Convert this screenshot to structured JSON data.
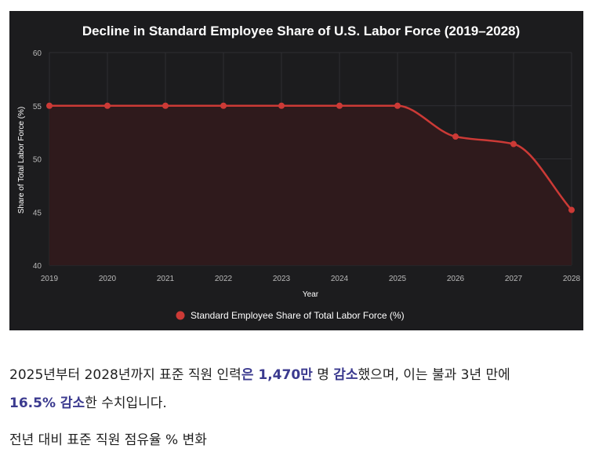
{
  "chart_data": {
    "type": "line",
    "title": "Decline in Standard Employee Share of U.S. Labor Force (2019–2028)",
    "xlabel": "Year",
    "ylabel": "Share of Total Labor Force (%)",
    "categories": [
      "2019",
      "2020",
      "2021",
      "2022",
      "2023",
      "2024",
      "2025",
      "2026",
      "2027",
      "2028"
    ],
    "series": [
      {
        "name": "Standard Employee Share of Total Labor Force (%)",
        "values": [
          55.0,
          55.0,
          55.0,
          55.0,
          55.0,
          55.0,
          55.0,
          52.1,
          51.4,
          45.2
        ],
        "color": "#cc3a36"
      }
    ],
    "ylim": [
      40,
      60
    ],
    "yticks": [
      "40",
      "45",
      "50",
      "55",
      "60"
    ],
    "grid": true,
    "legend_position": "bottom",
    "background": "#1c1c1e",
    "fill_color": "#2f1a1c"
  },
  "paragraph": {
    "part1": "2025년부터 2028년까지 표준 직원 인력",
    "part2": "은 1,470만",
    "part3": " 명 ",
    "part4": "감소",
    "part5": "했으며, 이는 불과 3년 만에 ",
    "part6": "16.5% 감소",
    "part7": "한 수치입니다."
  },
  "subheading": "전년 대비 표준 직원 점유율 % 변화",
  "colors": {
    "highlight": "#3b3a8f",
    "body_text": "#1f1f1f"
  }
}
